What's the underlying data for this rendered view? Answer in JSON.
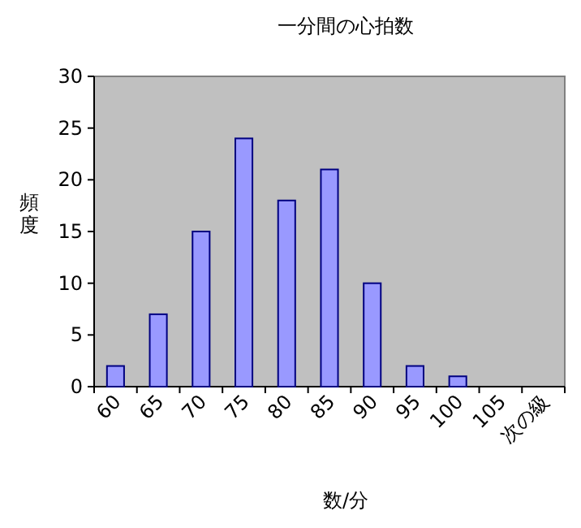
{
  "chart_data": {
    "type": "bar",
    "title": "一分間の心拍数",
    "xlabel": "数/分",
    "ylabel": "頻度",
    "categories": [
      "60",
      "65",
      "70",
      "75",
      "80",
      "85",
      "90",
      "95",
      "100",
      "105",
      "次の級"
    ],
    "values": [
      2,
      7,
      15,
      24,
      18,
      21,
      10,
      2,
      1,
      0,
      0
    ],
    "color": "#9999ff",
    "ylim": [
      0,
      30
    ],
    "yticks": [
      0,
      5,
      10,
      15,
      20,
      25,
      30
    ]
  }
}
